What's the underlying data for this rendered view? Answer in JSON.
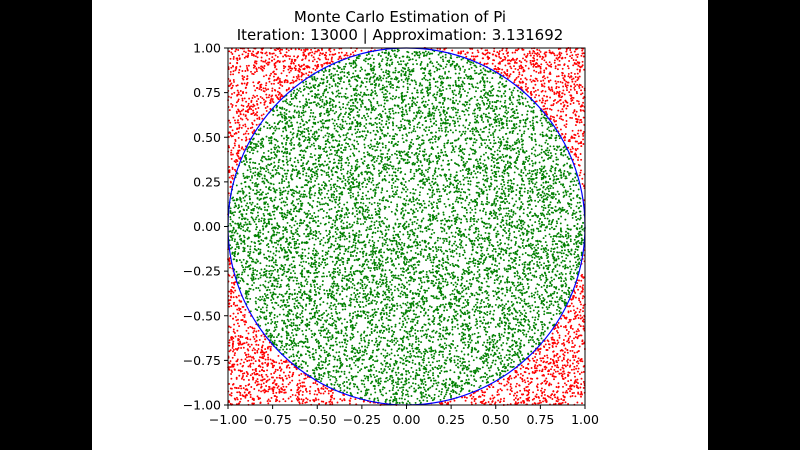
{
  "chart_data": {
    "type": "scatter",
    "title": "Monte Carlo Estimation of Pi",
    "subtitle_prefix": "Iteration:",
    "iteration": 13000,
    "approximation_label": "Approximation:",
    "approximation": 3.131692,
    "subtitle": "Iteration: 13000 | Approximation: 3.131692",
    "xlabel": "",
    "ylabel": "",
    "xlim": [
      -1.0,
      1.0
    ],
    "ylim": [
      -1.0,
      1.0
    ],
    "xticks": [
      -1.0,
      -0.75,
      -0.5,
      -0.25,
      0.0,
      0.25,
      0.5,
      0.75,
      1.0
    ],
    "yticks": [
      -1.0,
      -0.75,
      -0.5,
      -0.25,
      0.0,
      0.25,
      0.5,
      0.75,
      1.0
    ],
    "xtick_labels": [
      "−1.00",
      "−0.75",
      "−0.50",
      "−0.25",
      "0.00",
      "0.25",
      "0.50",
      "0.75",
      "1.00"
    ],
    "ytick_labels": [
      "−1.00",
      "−0.75",
      "−0.50",
      "−0.25",
      "0.00",
      "0.25",
      "0.50",
      "0.75",
      "1.00"
    ],
    "grid": false,
    "circle": {
      "center": [
        0,
        0
      ],
      "radius": 1.0,
      "color": "#0000ff"
    },
    "series": [
      {
        "name": "inside",
        "color": "#008000",
        "rule": "x^2 + y^2 <= 1"
      },
      {
        "name": "outside",
        "color": "#ff0000",
        "rule": "x^2 + y^2 > 1"
      }
    ],
    "total_points": 13000,
    "seed": 13000
  },
  "colors": {
    "background": "#000000",
    "panel": "#ffffff",
    "inside": "#008000",
    "outside": "#ff0000",
    "circle": "#0000ff"
  }
}
